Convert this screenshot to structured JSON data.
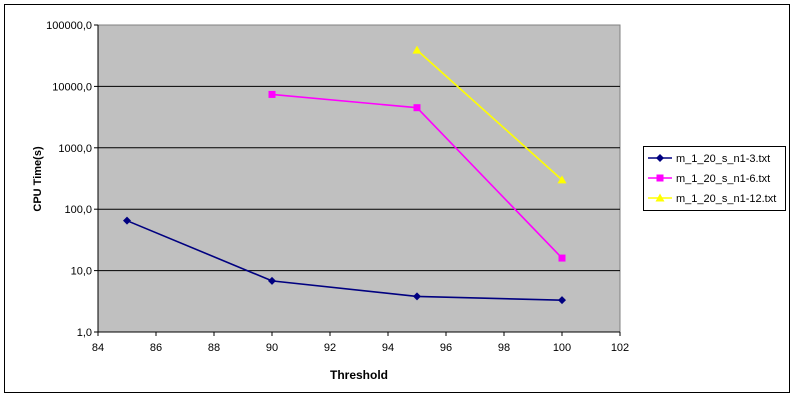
{
  "chart_data": {
    "type": "line",
    "xlabel": "Threshold",
    "ylabel": "CPU Time(s)",
    "y_scale": "log",
    "xlim": [
      84,
      102
    ],
    "ylim": [
      1,
      100000
    ],
    "x_ticks": [
      84,
      86,
      88,
      90,
      92,
      94,
      96,
      98,
      100,
      102
    ],
    "x_tick_labels": [
      "84",
      "86",
      "88",
      "90",
      "92",
      "94",
      "96",
      "98",
      "100",
      "102"
    ],
    "y_ticks": [
      1,
      10,
      100,
      1000,
      10000,
      100000
    ],
    "y_tick_labels": [
      "1,0",
      "10,0",
      "100,0",
      "1000,0",
      "10000,0",
      "100000,0"
    ],
    "grid": "horizontal major lines",
    "plot_background": "#c0c0c0",
    "legend_position": "right",
    "series": [
      {
        "name": "m_1_20_s_n1-3.txt",
        "color": "#000080",
        "marker": "diamond",
        "x": [
          85,
          90,
          95,
          100
        ],
        "y": [
          65,
          6.8,
          3.8,
          3.3
        ]
      },
      {
        "name": "m_1_20_s_n1-6.txt",
        "color": "#ff00ff",
        "marker": "square",
        "x": [
          90,
          95,
          100
        ],
        "y": [
          7400,
          4500,
          16
        ]
      },
      {
        "name": "m_1_20_s_n1-12.txt",
        "color": "#ffff00",
        "marker": "triangle",
        "x": [
          95,
          100
        ],
        "y": [
          39000,
          300
        ]
      }
    ]
  }
}
